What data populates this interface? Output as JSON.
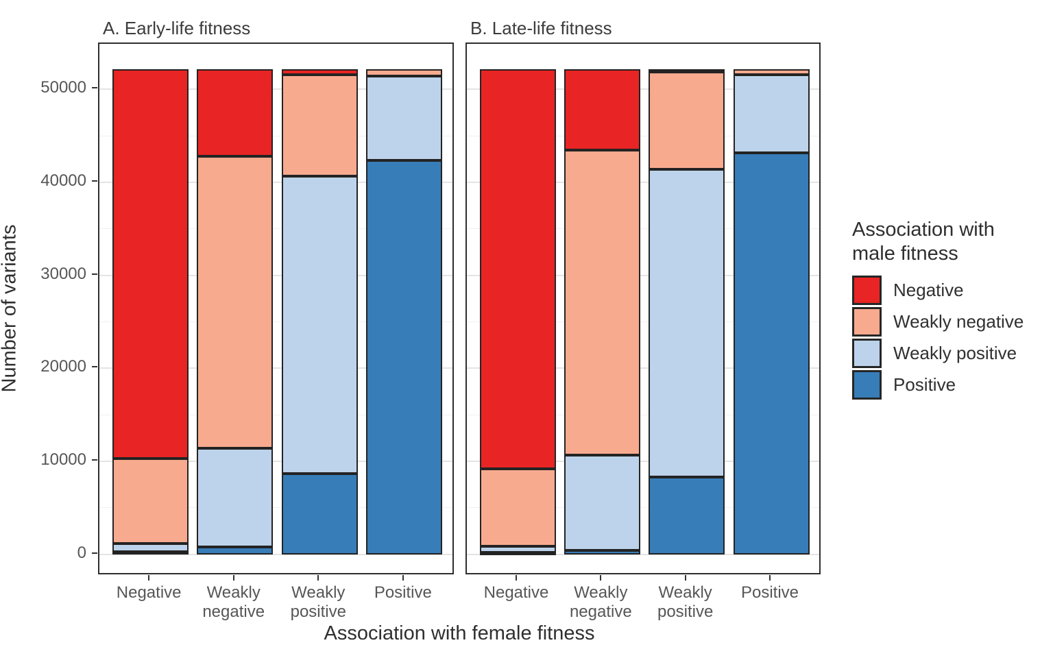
{
  "chart_data": {
    "type": "bar",
    "stacked": true,
    "title": "",
    "xlabel": "Association with female fitness",
    "ylabel": "Number of variants",
    "categories": [
      "Negative",
      "Weakly negative",
      "Weakly positive",
      "Positive"
    ],
    "category_tick_lines": [
      [
        "Negative"
      ],
      [
        "Weakly",
        "negative"
      ],
      [
        "Weakly",
        "positive"
      ],
      [
        "Positive"
      ]
    ],
    "yticks_major": [
      0,
      10000,
      20000,
      30000,
      40000,
      50000
    ],
    "yticks_minor": [
      5000,
      15000,
      25000,
      35000,
      45000
    ],
    "ylim": [
      -2300,
      54900
    ],
    "grid": true,
    "bar_total_per_category": 52200,
    "stack_order_bottom_to_top": [
      "Positive",
      "Weakly positive",
      "Weakly negative",
      "Negative"
    ],
    "palette": {
      "Negative": "#e82424",
      "Weakly negative": "#f8aa8f",
      "Weakly positive": "#bdd3eb",
      "Positive": "#377db8"
    },
    "facets": [
      {
        "label": "A. Early-life fitness",
        "series": [
          {
            "name": "Negative",
            "values": [
              41900,
              9400,
              600,
              0
            ]
          },
          {
            "name": "Weakly negative",
            "values": [
              9150,
              31400,
              10900,
              800
            ]
          },
          {
            "name": "Weakly positive",
            "values": [
              900,
              10600,
              32000,
              9000
            ]
          },
          {
            "name": "Positive",
            "values": [
              250,
              800,
              8700,
              42400
            ]
          }
        ]
      },
      {
        "label": "B. Late-life fitness",
        "series": [
          {
            "name": "Negative",
            "values": [
              43000,
              8700,
              300,
              0
            ]
          },
          {
            "name": "Weakly negative",
            "values": [
              8300,
              32800,
              10500,
              600
            ]
          },
          {
            "name": "Weakly positive",
            "values": [
              700,
              10250,
              33100,
              8400
            ]
          },
          {
            "name": "Positive",
            "values": [
              200,
              450,
              8300,
              43200
            ]
          }
        ]
      }
    ],
    "legend": {
      "title": "Association with male fitness",
      "position": "right",
      "entries": [
        "Negative",
        "Weakly negative",
        "Weakly positive",
        "Positive"
      ]
    }
  }
}
